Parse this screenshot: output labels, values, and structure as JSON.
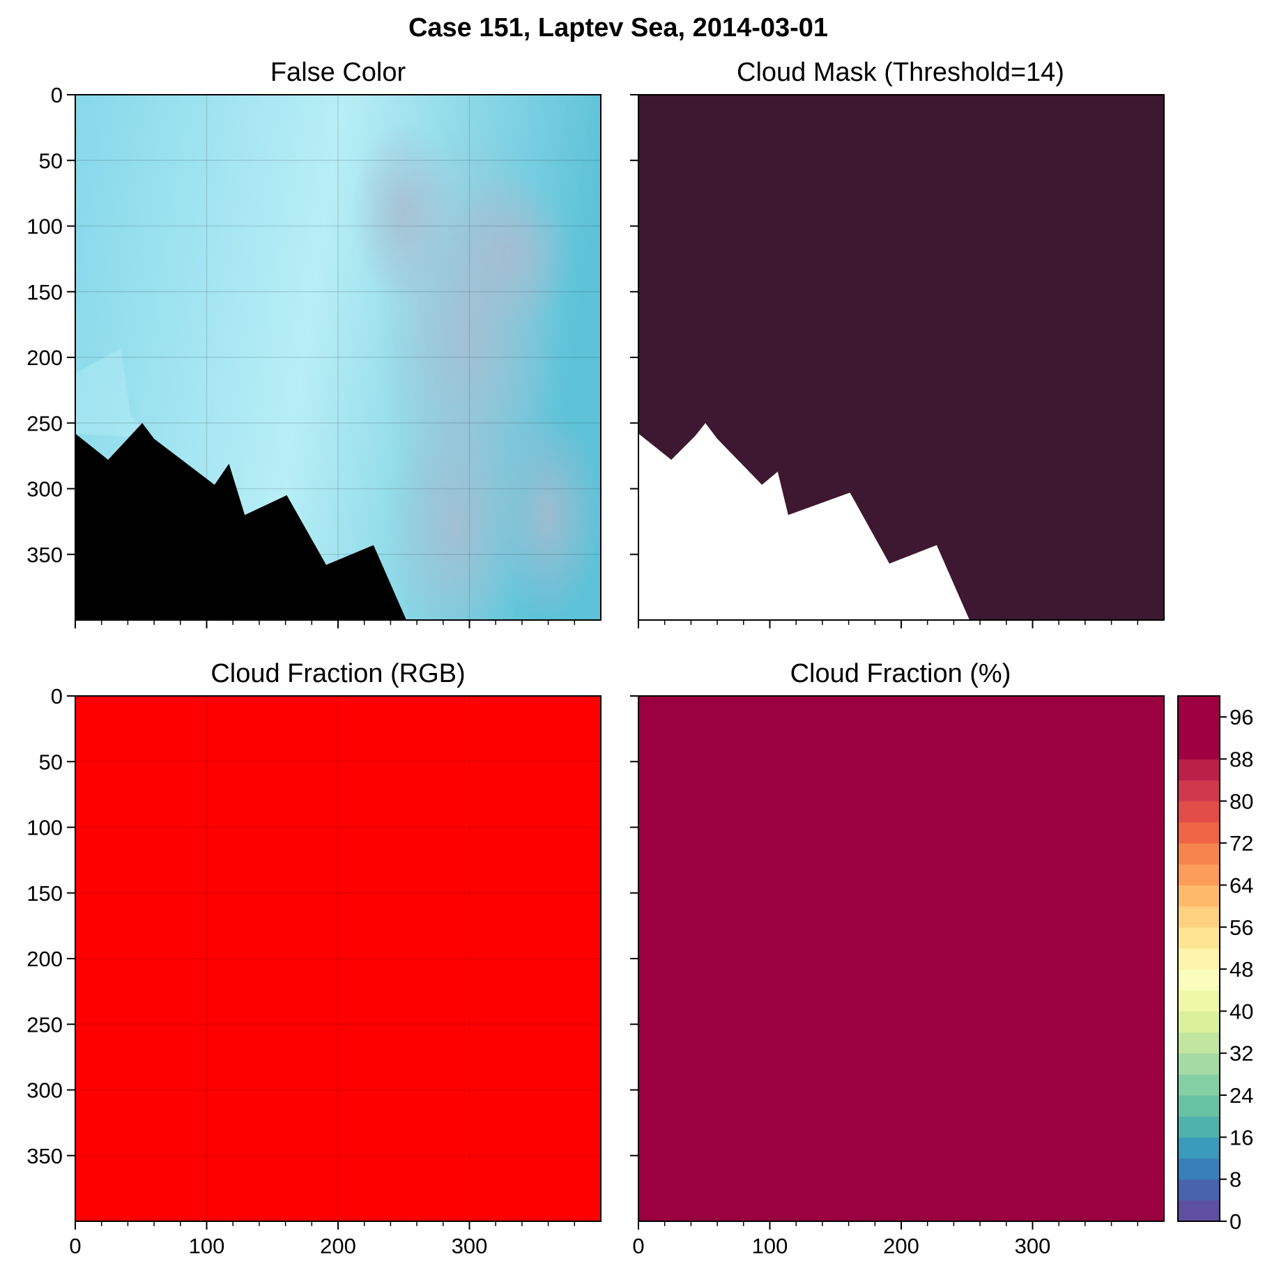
{
  "figure": {
    "suptitle": "Case 151, Laptev Sea, 2014-03-01"
  },
  "chart_data": [
    {
      "type": "image",
      "title": "False Color",
      "xlim": [
        0,
        400
      ],
      "ylim": [
        400,
        0
      ],
      "xticks": [
        0,
        100,
        200,
        300
      ],
      "yticks": [
        0,
        50,
        100,
        150,
        200,
        250,
        300,
        350
      ],
      "show_xtick_labels": false,
      "show_ytick_labels": true,
      "grid": true,
      "colors": {
        "ice_light": "#b8eef6",
        "ice_mid": "#86d8ea",
        "ice_dark": "#5ec2d8",
        "cloud_gray": "#a9bcd0",
        "no_data": "#000000"
      },
      "no_data_boundary": [
        [
          0,
          258
        ],
        [
          25,
          278
        ],
        [
          51,
          250
        ],
        [
          60,
          262
        ],
        [
          106,
          297
        ],
        [
          117,
          281
        ],
        [
          129,
          320
        ],
        [
          161,
          305
        ],
        [
          191,
          358
        ],
        [
          227,
          343
        ],
        [
          252,
          400
        ]
      ],
      "inner_swath_boundary": [
        [
          0,
          212
        ],
        [
          35,
          193
        ],
        [
          42,
          244
        ],
        [
          60,
          262
        ]
      ]
    },
    {
      "type": "image",
      "title": "Cloud Mask (Threshold=14)",
      "xlim": [
        0,
        400
      ],
      "ylim": [
        400,
        0
      ],
      "xticks": [
        0,
        100,
        200,
        300
      ],
      "yticks": [
        0,
        50,
        100,
        150,
        200,
        250,
        300,
        350
      ],
      "show_xtick_labels": false,
      "show_ytick_labels": false,
      "grid": false,
      "colors": {
        "cloud": "#3d1830",
        "clear": "#ffffff"
      },
      "clear_boundary": [
        [
          0,
          258
        ],
        [
          25,
          278
        ],
        [
          43,
          260
        ],
        [
          51,
          250
        ],
        [
          60,
          262
        ],
        [
          94,
          297
        ],
        [
          106,
          287
        ],
        [
          114,
          320
        ],
        [
          161,
          303
        ],
        [
          191,
          357
        ],
        [
          227,
          343
        ],
        [
          252,
          400
        ]
      ]
    },
    {
      "type": "image",
      "title": "Cloud Fraction (RGB)",
      "xlim": [
        0,
        400
      ],
      "ylim": [
        400,
        0
      ],
      "xticks": [
        0,
        100,
        200,
        300
      ],
      "yticks": [
        0,
        50,
        100,
        150,
        200,
        250,
        300,
        350
      ],
      "show_xtick_labels": true,
      "show_ytick_labels": true,
      "grid": true,
      "colors": {
        "fill": "#ff0000"
      }
    },
    {
      "type": "heatmap",
      "title": "Cloud Fraction (%)",
      "xlim": [
        0,
        400
      ],
      "ylim": [
        400,
        0
      ],
      "xticks": [
        0,
        100,
        200,
        300
      ],
      "yticks": [
        0,
        50,
        100,
        150,
        200,
        250,
        300,
        350
      ],
      "show_xtick_labels": true,
      "show_ytick_labels": false,
      "grid": false,
      "value": 100,
      "colors": {
        "fill": "#9b0040"
      },
      "colorbar": {
        "min": 0,
        "max": 100,
        "step": 4,
        "ticks": [
          0,
          8,
          16,
          24,
          32,
          40,
          48,
          56,
          64,
          72,
          80,
          88,
          96
        ],
        "colors": [
          "#5e4fa2",
          "#4a63ad",
          "#3880b9",
          "#3a9bbc",
          "#50b2ad",
          "#68c3a4",
          "#85cfa5",
          "#a4dba4",
          "#c2e59f",
          "#dcf09c",
          "#eff8a6",
          "#fbfdbc",
          "#fff4ac",
          "#fee593",
          "#fdd17f",
          "#fdba6b",
          "#fc9d59",
          "#f7844e",
          "#ef6545",
          "#e24d4a",
          "#d0384e",
          "#bb2049",
          "#9e0142",
          "#9e0142",
          "#9e0142"
        ]
      }
    }
  ]
}
